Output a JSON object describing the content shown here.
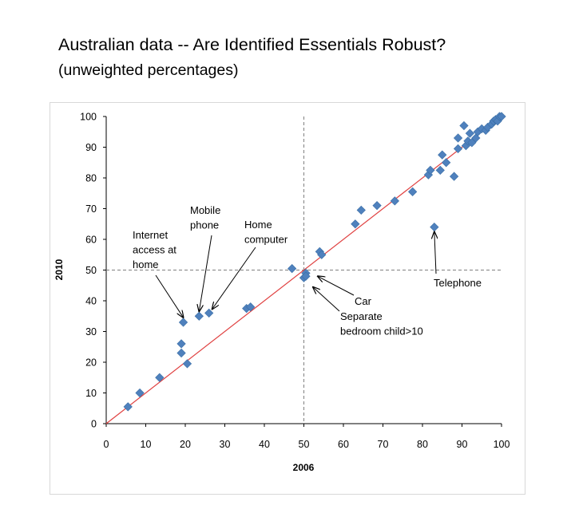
{
  "title": "Australian data -- Are Identified Essentials Robust?",
  "subtitle": "(unweighted percentages)",
  "chart_data": {
    "type": "scatter",
    "xlabel": "2006",
    "ylabel": "2010",
    "xlim": [
      0,
      100
    ],
    "ylim": [
      0,
      100
    ],
    "xticks": [
      0,
      10,
      20,
      30,
      40,
      50,
      60,
      70,
      80,
      90,
      100
    ],
    "yticks": [
      0,
      10,
      20,
      30,
      40,
      50,
      60,
      70,
      80,
      90,
      100
    ],
    "grid": false,
    "reference_lines": {
      "diagonal": "y = x",
      "vertical_x": 50,
      "horizontal_y": 50
    },
    "colors": {
      "points": "#4f81bd",
      "diagonal": "#e04040",
      "reference": "#808080"
    },
    "points": [
      {
        "x": 5.5,
        "y": 5.5
      },
      {
        "x": 8.5,
        "y": 10
      },
      {
        "x": 13.5,
        "y": 15
      },
      {
        "x": 19,
        "y": 23
      },
      {
        "x": 19,
        "y": 26
      },
      {
        "x": 19.5,
        "y": 33
      },
      {
        "x": 20.5,
        "y": 19.5
      },
      {
        "x": 23.5,
        "y": 35
      },
      {
        "x": 26,
        "y": 36
      },
      {
        "x": 35.5,
        "y": 37.5
      },
      {
        "x": 36.5,
        "y": 38
      },
      {
        "x": 47,
        "y": 50.5
      },
      {
        "x": 50,
        "y": 47.5
      },
      {
        "x": 50.5,
        "y": 49
      },
      {
        "x": 50.5,
        "y": 48
      },
      {
        "x": 54,
        "y": 56
      },
      {
        "x": 54.5,
        "y": 55
      },
      {
        "x": 63,
        "y": 65
      },
      {
        "x": 64.5,
        "y": 69.5
      },
      {
        "x": 68.5,
        "y": 71
      },
      {
        "x": 73,
        "y": 72.5
      },
      {
        "x": 77.5,
        "y": 75.5
      },
      {
        "x": 81.5,
        "y": 81
      },
      {
        "x": 82,
        "y": 82.5
      },
      {
        "x": 83,
        "y": 64
      },
      {
        "x": 84.5,
        "y": 82.5
      },
      {
        "x": 85,
        "y": 87.5
      },
      {
        "x": 86,
        "y": 85
      },
      {
        "x": 88,
        "y": 80.5
      },
      {
        "x": 89,
        "y": 89.5
      },
      {
        "x": 89,
        "y": 93
      },
      {
        "x": 90.5,
        "y": 97
      },
      {
        "x": 91,
        "y": 90.5
      },
      {
        "x": 91.5,
        "y": 92
      },
      {
        "x": 92,
        "y": 94.5
      },
      {
        "x": 92.5,
        "y": 91.5
      },
      {
        "x": 93.5,
        "y": 93
      },
      {
        "x": 94,
        "y": 95
      },
      {
        "x": 95,
        "y": 96
      },
      {
        "x": 96,
        "y": 95.5
      },
      {
        "x": 96.5,
        "y": 96.5
      },
      {
        "x": 97.5,
        "y": 97.5
      },
      {
        "x": 98,
        "y": 98.5
      },
      {
        "x": 98.5,
        "y": 99
      },
      {
        "x": 99,
        "y": 98.5
      },
      {
        "x": 99.5,
        "y": 100
      },
      {
        "x": 100,
        "y": 100
      }
    ],
    "annotations": [
      {
        "lines": [
          "Internet",
          "access at",
          "home"
        ],
        "target": {
          "x": 19.5,
          "y": 33
        }
      },
      {
        "lines": [
          "Mobile",
          "phone"
        ],
        "target": {
          "x": 23.5,
          "y": 35
        }
      },
      {
        "lines": [
          "Home",
          "computer"
        ],
        "target": {
          "x": 26,
          "y": 36
        }
      },
      {
        "lines": [
          "Telephone"
        ],
        "target": {
          "x": 83,
          "y": 64
        }
      },
      {
        "lines": [
          "Car"
        ],
        "target": {
          "x": 52.5,
          "y": 48.5
        }
      },
      {
        "lines": [
          "Separate",
          "bedroom child>10"
        ],
        "target": {
          "x": 51.5,
          "y": 45.5
        }
      }
    ]
  }
}
